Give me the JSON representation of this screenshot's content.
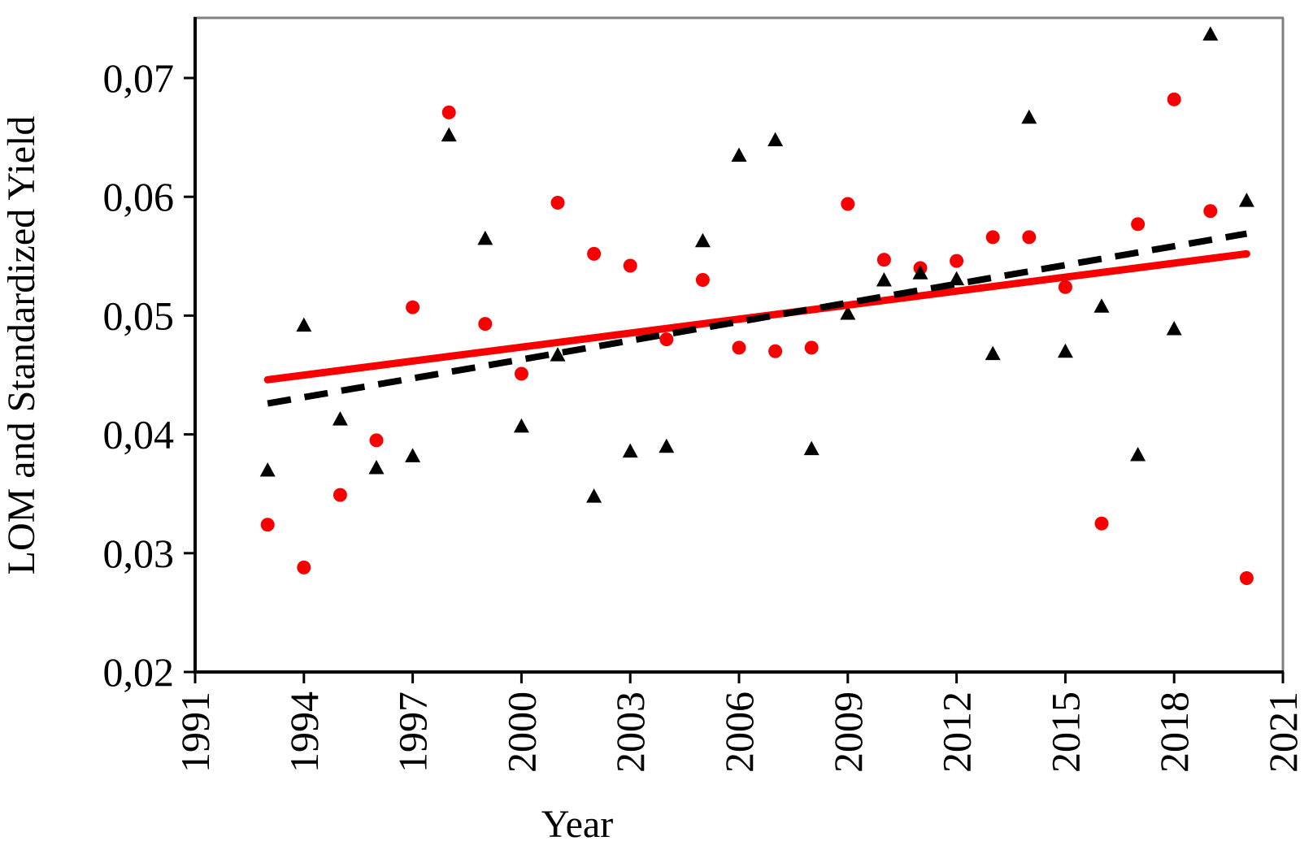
{
  "figure": {
    "xlabel": "Year",
    "ylabel": "LOM and Standardized Yield"
  },
  "colors": {
    "red": "#f80000",
    "black": "#000000",
    "frame_gray": "#808080",
    "background": "#ffffff"
  },
  "chart_data": {
    "type": "scatter",
    "title": "",
    "xlabel": "Year",
    "ylabel": "LOM and Standardized Yield",
    "grid": false,
    "legend": "none",
    "xlim": [
      1991,
      2021
    ],
    "ylim": [
      0.02,
      0.075
    ],
    "x_tick_years": [
      1991,
      1994,
      1997,
      2000,
      2003,
      2006,
      2009,
      2012,
      2015,
      2018,
      2021
    ],
    "x_tick_labels": [
      "1991",
      "1994",
      "1997",
      "2000",
      "2003",
      "2006",
      "2009",
      "2012",
      "2015",
      "2018",
      "2021"
    ],
    "y_tick_values": [
      0.07,
      0.06,
      0.05,
      0.04,
      0.03,
      0.02
    ],
    "y_tick_labels": [
      "0,07",
      "0,06",
      "0,05",
      "0,04",
      "0,03",
      "0,02"
    ],
    "x": [
      1993,
      1994,
      1995,
      1996,
      1997,
      1998,
      1999,
      2000,
      2001,
      2002,
      2003,
      2004,
      2005,
      2006,
      2007,
      2008,
      2009,
      2010,
      2011,
      2012,
      2013,
      2014,
      2015,
      2016,
      2017,
      2018,
      2019,
      2020
    ],
    "series": [
      {
        "name": "red-circles",
        "marker": "circle",
        "color": "#f80000",
        "values": [
          0.0324,
          0.0288,
          0.0349,
          0.0395,
          0.0507,
          0.0671,
          0.0493,
          0.0451,
          0.0595,
          0.0552,
          0.0542,
          0.048,
          0.053,
          0.0473,
          0.047,
          0.0473,
          0.0594,
          0.0547,
          0.054,
          0.0546,
          0.0566,
          0.0566,
          0.0524,
          0.0325,
          0.0577,
          0.0682,
          0.0588,
          0.0279
        ]
      },
      {
        "name": "black-triangles",
        "marker": "triangle",
        "color": "#000000",
        "values": [
          0.037,
          0.0492,
          0.0413,
          0.0372,
          0.0382,
          0.0652,
          0.0565,
          0.0407,
          0.0467,
          0.0348,
          0.0386,
          0.039,
          0.0563,
          0.0635,
          0.0648,
          0.0388,
          0.0502,
          0.053,
          0.0536,
          0.0531,
          0.0468,
          0.0667,
          0.047,
          0.0508,
          0.0383,
          0.0489,
          0.0737,
          0.0597
        ]
      }
    ],
    "trend_lines": [
      {
        "name": "red-solid-trend",
        "style": "solid",
        "color": "#f80000",
        "x_start": 1993,
        "y_start": 0.0446,
        "x_end": 2020,
        "y_end": 0.0552
      },
      {
        "name": "black-dashed-trend",
        "style": "dashed",
        "color": "#000000",
        "x_start": 1993,
        "y_start": 0.0426,
        "x_end": 2020,
        "y_end": 0.0569
      }
    ]
  }
}
